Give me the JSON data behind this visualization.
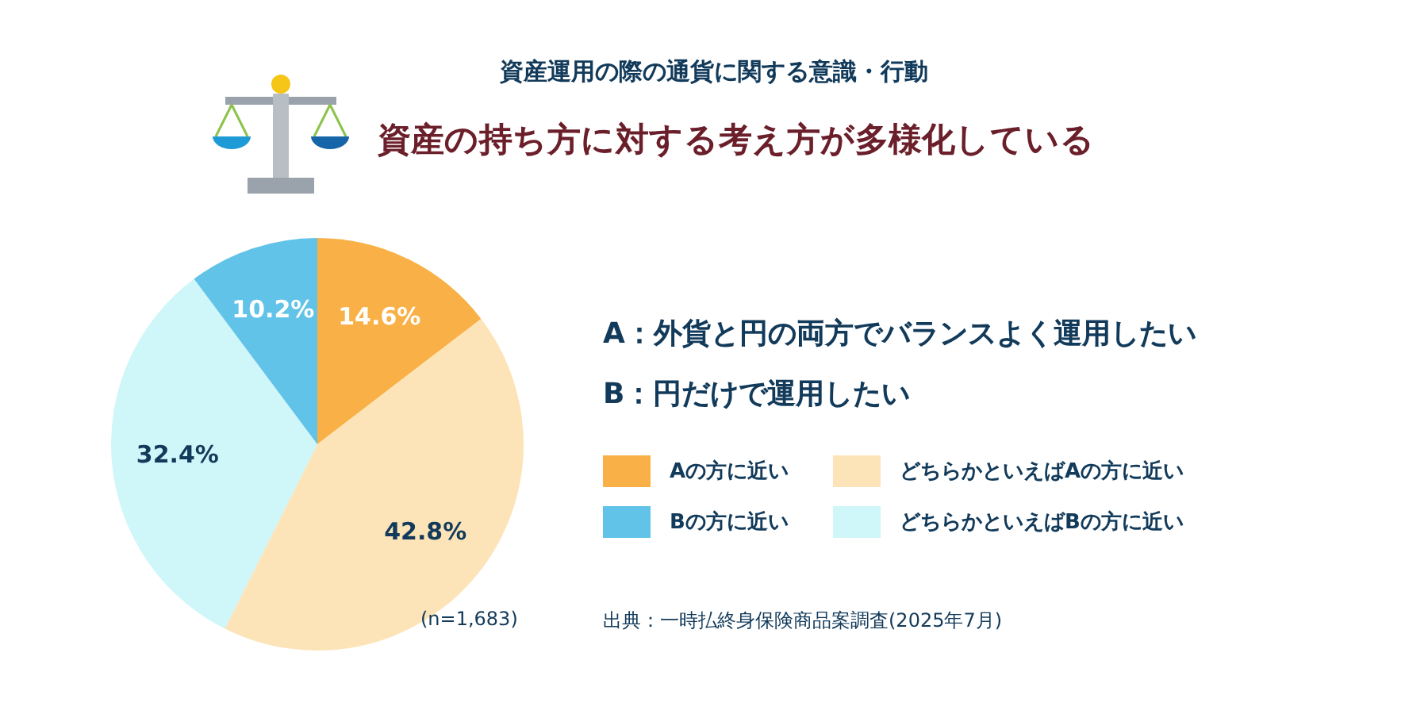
{
  "chart_data": {
    "type": "pie",
    "subtitle": "資産運用の際の通貨に関する意識・行動",
    "title": "資産の持ち方に対する考え方が多様化している",
    "categories": [
      "Aの方に近い",
      "どちらかといえばAの方に近い",
      "どちらかといえばBの方に近い",
      "Bの方に近い"
    ],
    "values": [
      14.6,
      42.8,
      32.4,
      10.2
    ],
    "colors": [
      "#f9b147",
      "#fde4b8",
      "#cff6f9",
      "#62c3e8"
    ],
    "value_labels": [
      "14.6%",
      "42.8%",
      "32.4%",
      "10.2%"
    ],
    "legend": "right",
    "annotations": [
      "A：外貨と円の両方でバランスよく運用したい",
      "B：円だけで運用したい",
      "(n=1,683)",
      "出典：一時払終身保険商品案調査(2025年7月)"
    ]
  }
}
